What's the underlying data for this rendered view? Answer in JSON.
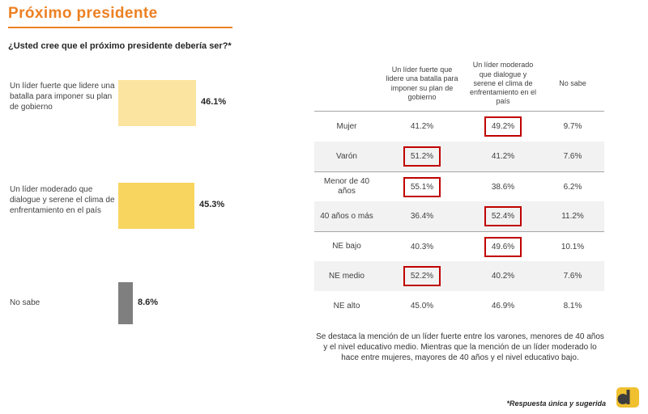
{
  "page": {
    "title": "Próximo presidente",
    "question": "¿Usted cree que el próximo presidente debería ser?*",
    "insight": "Se destaca la mención de un líder fuerte entre los varones, menores de 40 años y el nivel educativo medio. Mientras que la mención de un líder moderado lo hace entre mujeres, mayores de 40 años y el nivel educativo bajo.",
    "footnote": "*Respuesta única y sugerida"
  },
  "colors": {
    "accent_orange": "#ED8022",
    "bar_light_yellow": "#FBE4A0",
    "bar_yellow": "#F8D55F",
    "bar_gray": "#7F7F7F",
    "highlight_red": "#C00000",
    "stripe_gray": "#F2F2F2"
  },
  "chart_data": [
    {
      "type": "bar",
      "title": "¿Usted cree que el próximo presidente debería ser?*",
      "orientation": "horizontal",
      "categories": [
        "Un líder fuerte que lidere una batalla para imponer su plan de gobierno",
        "Un líder moderado que dialogue y serene el clima de enfrentamiento en el país",
        "No sabe"
      ],
      "values": [
        46.1,
        45.3,
        8.6
      ],
      "value_labels": [
        "46.1%",
        "45.3%",
        "8.6%"
      ],
      "xlim": [
        0,
        100
      ],
      "grid": false,
      "legend": false
    },
    {
      "type": "table",
      "columns": [
        "Un líder fuerte que lidere una batalla para imponer su plan de gobierno",
        "Un líder moderado que dialogue y serene el clima de enfrentamiento en el país",
        "No sabe"
      ],
      "rows": [
        {
          "label": "Mujer",
          "values": [
            "41.2%",
            "49.2%",
            "9.7%"
          ],
          "highlighted": [
            false,
            true,
            false
          ]
        },
        {
          "label": "Varón",
          "values": [
            "51.2%",
            "41.2%",
            "7.6%"
          ],
          "highlighted": [
            true,
            false,
            false
          ]
        },
        {
          "label": "Menor de 40 años",
          "values": [
            "55.1%",
            "38.6%",
            "6.2%"
          ],
          "highlighted": [
            true,
            false,
            false
          ]
        },
        {
          "label": "40 años o más",
          "values": [
            "36.4%",
            "52.4%",
            "11.2%"
          ],
          "highlighted": [
            false,
            true,
            false
          ]
        },
        {
          "label": "NE bajo",
          "values": [
            "40.3%",
            "49.6%",
            "10.1%"
          ],
          "highlighted": [
            false,
            true,
            false
          ]
        },
        {
          "label": "NE medio",
          "values": [
            "52.2%",
            "40.2%",
            "7.6%"
          ],
          "highlighted": [
            true,
            false,
            false
          ]
        },
        {
          "label": "NE alto",
          "values": [
            "45.0%",
            "46.9%",
            "8.1%"
          ],
          "highlighted": [
            false,
            false,
            false
          ]
        }
      ]
    }
  ]
}
